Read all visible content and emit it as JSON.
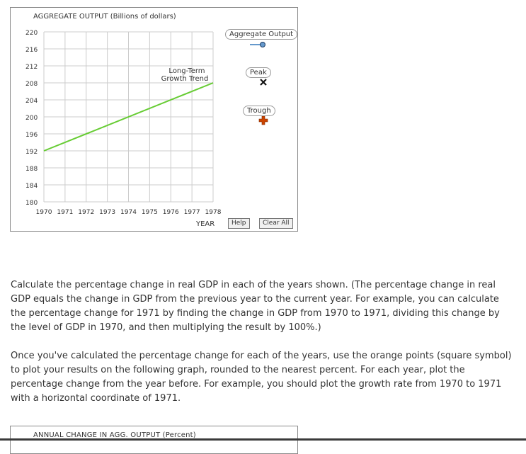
{
  "graph1": {
    "title": "AGGREGATE OUTPUT (Billions of dollars)",
    "xlabel": "YEAR",
    "trend_label_line1": "Long-Term",
    "trend_label_line2": "Growth Trend",
    "legend": {
      "aggregate_output": "Aggregate Output",
      "peak": "Peak",
      "trough": "Trough"
    },
    "help_label": "Help",
    "clear_label": "Clear All"
  },
  "chart_data": {
    "type": "line",
    "title": "AGGREGATE OUTPUT (Billions of dollars)",
    "xlabel": "YEAR",
    "ylabel": "",
    "x": [
      "1970",
      "1971",
      "1972",
      "1973",
      "1974",
      "1975",
      "1976",
      "1977",
      "1978"
    ],
    "y_ticks": [
      "220",
      "216",
      "212",
      "208",
      "204",
      "200",
      "196",
      "192",
      "188",
      "184",
      "180"
    ],
    "ylim": [
      180,
      220
    ],
    "xlim": [
      1970,
      1978
    ],
    "grid": true,
    "series": [
      {
        "name": "Long-Term Growth Trend",
        "x": [
          1970,
          1978
        ],
        "y": [
          192,
          208
        ],
        "color": "#66cc33"
      }
    ]
  },
  "instructions": {
    "paragraph1": "Calculate the percentage change in real GDP in each of the years shown. (The percentage change in real GDP equals the change in GDP from the previous year to the current year. For example, you can calculate the percentage change for 1971 by finding the change in GDP from 1970 to 1971, dividing this change by the level of GDP in 1970, and then multiplying the result by 100%.)",
    "paragraph2": "Once you've calculated the percentage change for each of the years, use the orange points (square symbol) to plot your results on the following graph, rounded to the nearest percent. For each year, plot the percentage change from the year before. For example, you should plot the growth rate from 1970 to 1971 with a horizontal coordinate of 1971."
  },
  "graph2": {
    "title": "ANNUAL CHANGE IN AGG. OUTPUT (Percent)"
  },
  "colors": {
    "trend_line": "#66cc33",
    "aggregate_marker": "#6699cc",
    "trough_marker": "#cc4400",
    "grid": "#cccccc"
  }
}
